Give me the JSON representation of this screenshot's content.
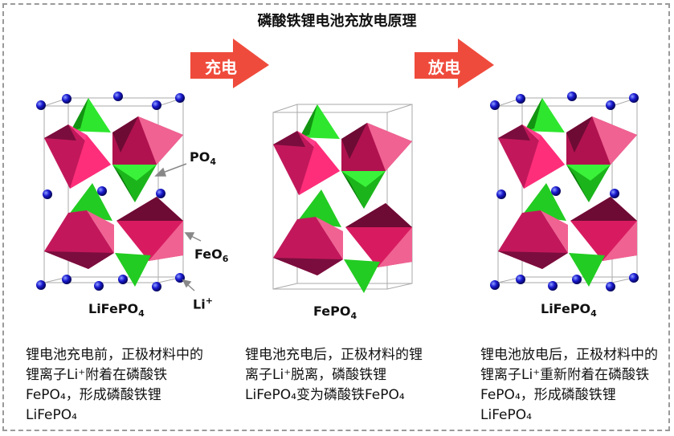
{
  "title": "磷酸铁锂电池充放电原理",
  "arrows": {
    "charge": "充电",
    "discharge": "放电",
    "color": "#ef4b3c"
  },
  "structures": [
    {
      "formula": "LiFePO",
      "sub": "4"
    },
    {
      "formula": "FePO",
      "sub": "4"
    },
    {
      "formula": "LiFePO",
      "sub": "4"
    }
  ],
  "labels": {
    "po4": "PO",
    "po4_sub": "4",
    "feo6": "FeO",
    "feo6_sub": "6",
    "li": "Li",
    "li_sup": "+"
  },
  "descriptions": [
    "锂电池充电前，正极材料中的锂离子Li⁺附着在磷酸铁FePO₄，形成磷酸铁锂LiFePO₄",
    "锂电池充电后，正极材料的锂离子Li⁺脱离，磷酸铁锂LiFePO₄变为磷酸铁FePO₄",
    "锂电池放电后，正极材料中的锂离子Li⁺重新附着在磷酸铁FePO₄，形成磷酸铁锂LiFePO₄"
  ],
  "colors": {
    "tetrahedron": "#22cc22",
    "octahedron": "#d81b60",
    "lithium": "#1a1ad0"
  }
}
